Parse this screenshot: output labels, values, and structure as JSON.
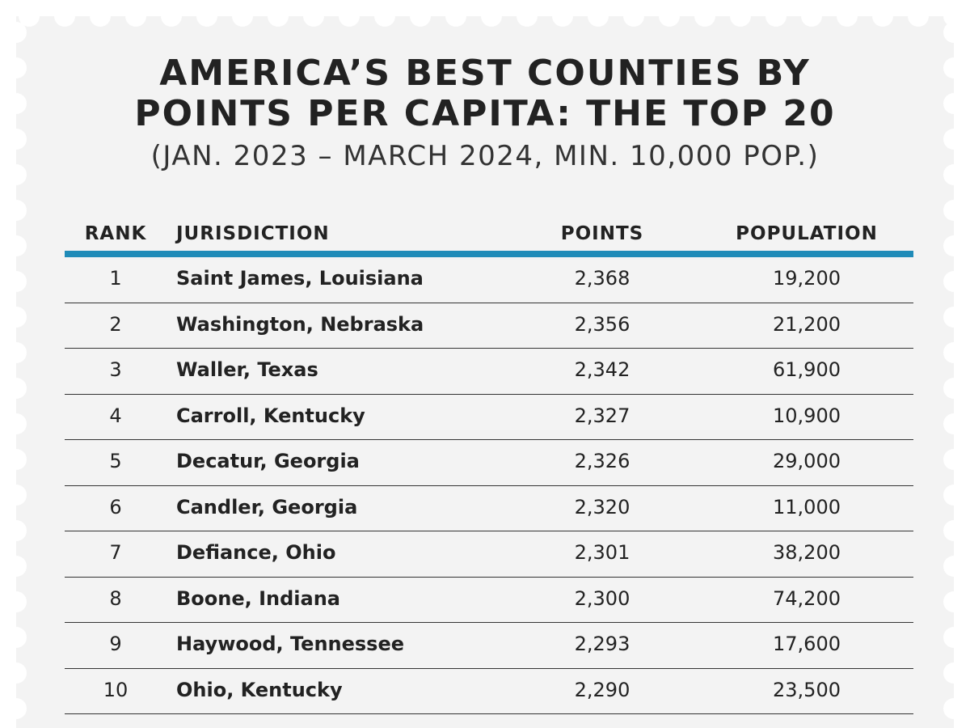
{
  "title_line1": "AMERICA’S BEST COUNTIES BY",
  "title_line2": "POINTS PER CAPITA: THE TOP 20",
  "subtitle": "(JAN. 2023 – MARCH 2024, MIN. 10,000 POP.)",
  "headers": {
    "rank": "RANK",
    "jurisdiction": "JURISDICTION",
    "points": "POINTS",
    "population": "POPULATION"
  },
  "colors": {
    "accent": "#1f8bb8",
    "stamp": "#f3f3f3"
  },
  "rows": [
    {
      "rank": "1",
      "jurisdiction": "Saint James, Louisiana",
      "points": "2,368",
      "population": "19,200"
    },
    {
      "rank": "2",
      "jurisdiction": "Washington, Nebraska",
      "points": "2,356",
      "population": "21,200"
    },
    {
      "rank": "3",
      "jurisdiction": "Waller, Texas",
      "points": "2,342",
      "population": "61,900"
    },
    {
      "rank": "4",
      "jurisdiction": "Carroll, Kentucky",
      "points": "2,327",
      "population": "10,900"
    },
    {
      "rank": "5",
      "jurisdiction": "Decatur, Georgia",
      "points": "2,326",
      "population": "29,000"
    },
    {
      "rank": "6",
      "jurisdiction": "Candler, Georgia",
      "points": "2,320",
      "population": "11,000"
    },
    {
      "rank": "7",
      "jurisdiction": "Defiance, Ohio",
      "points": "2,301",
      "population": "38,200"
    },
    {
      "rank": "8",
      "jurisdiction": "Boone, Indiana",
      "points": "2,300",
      "population": "74,200"
    },
    {
      "rank": "9",
      "jurisdiction": "Haywood, Tennessee",
      "points": "2,293",
      "population": "17,600"
    },
    {
      "rank": "10",
      "jurisdiction": "Ohio, Kentucky",
      "points": "2,290",
      "population": "23,500"
    }
  ]
}
